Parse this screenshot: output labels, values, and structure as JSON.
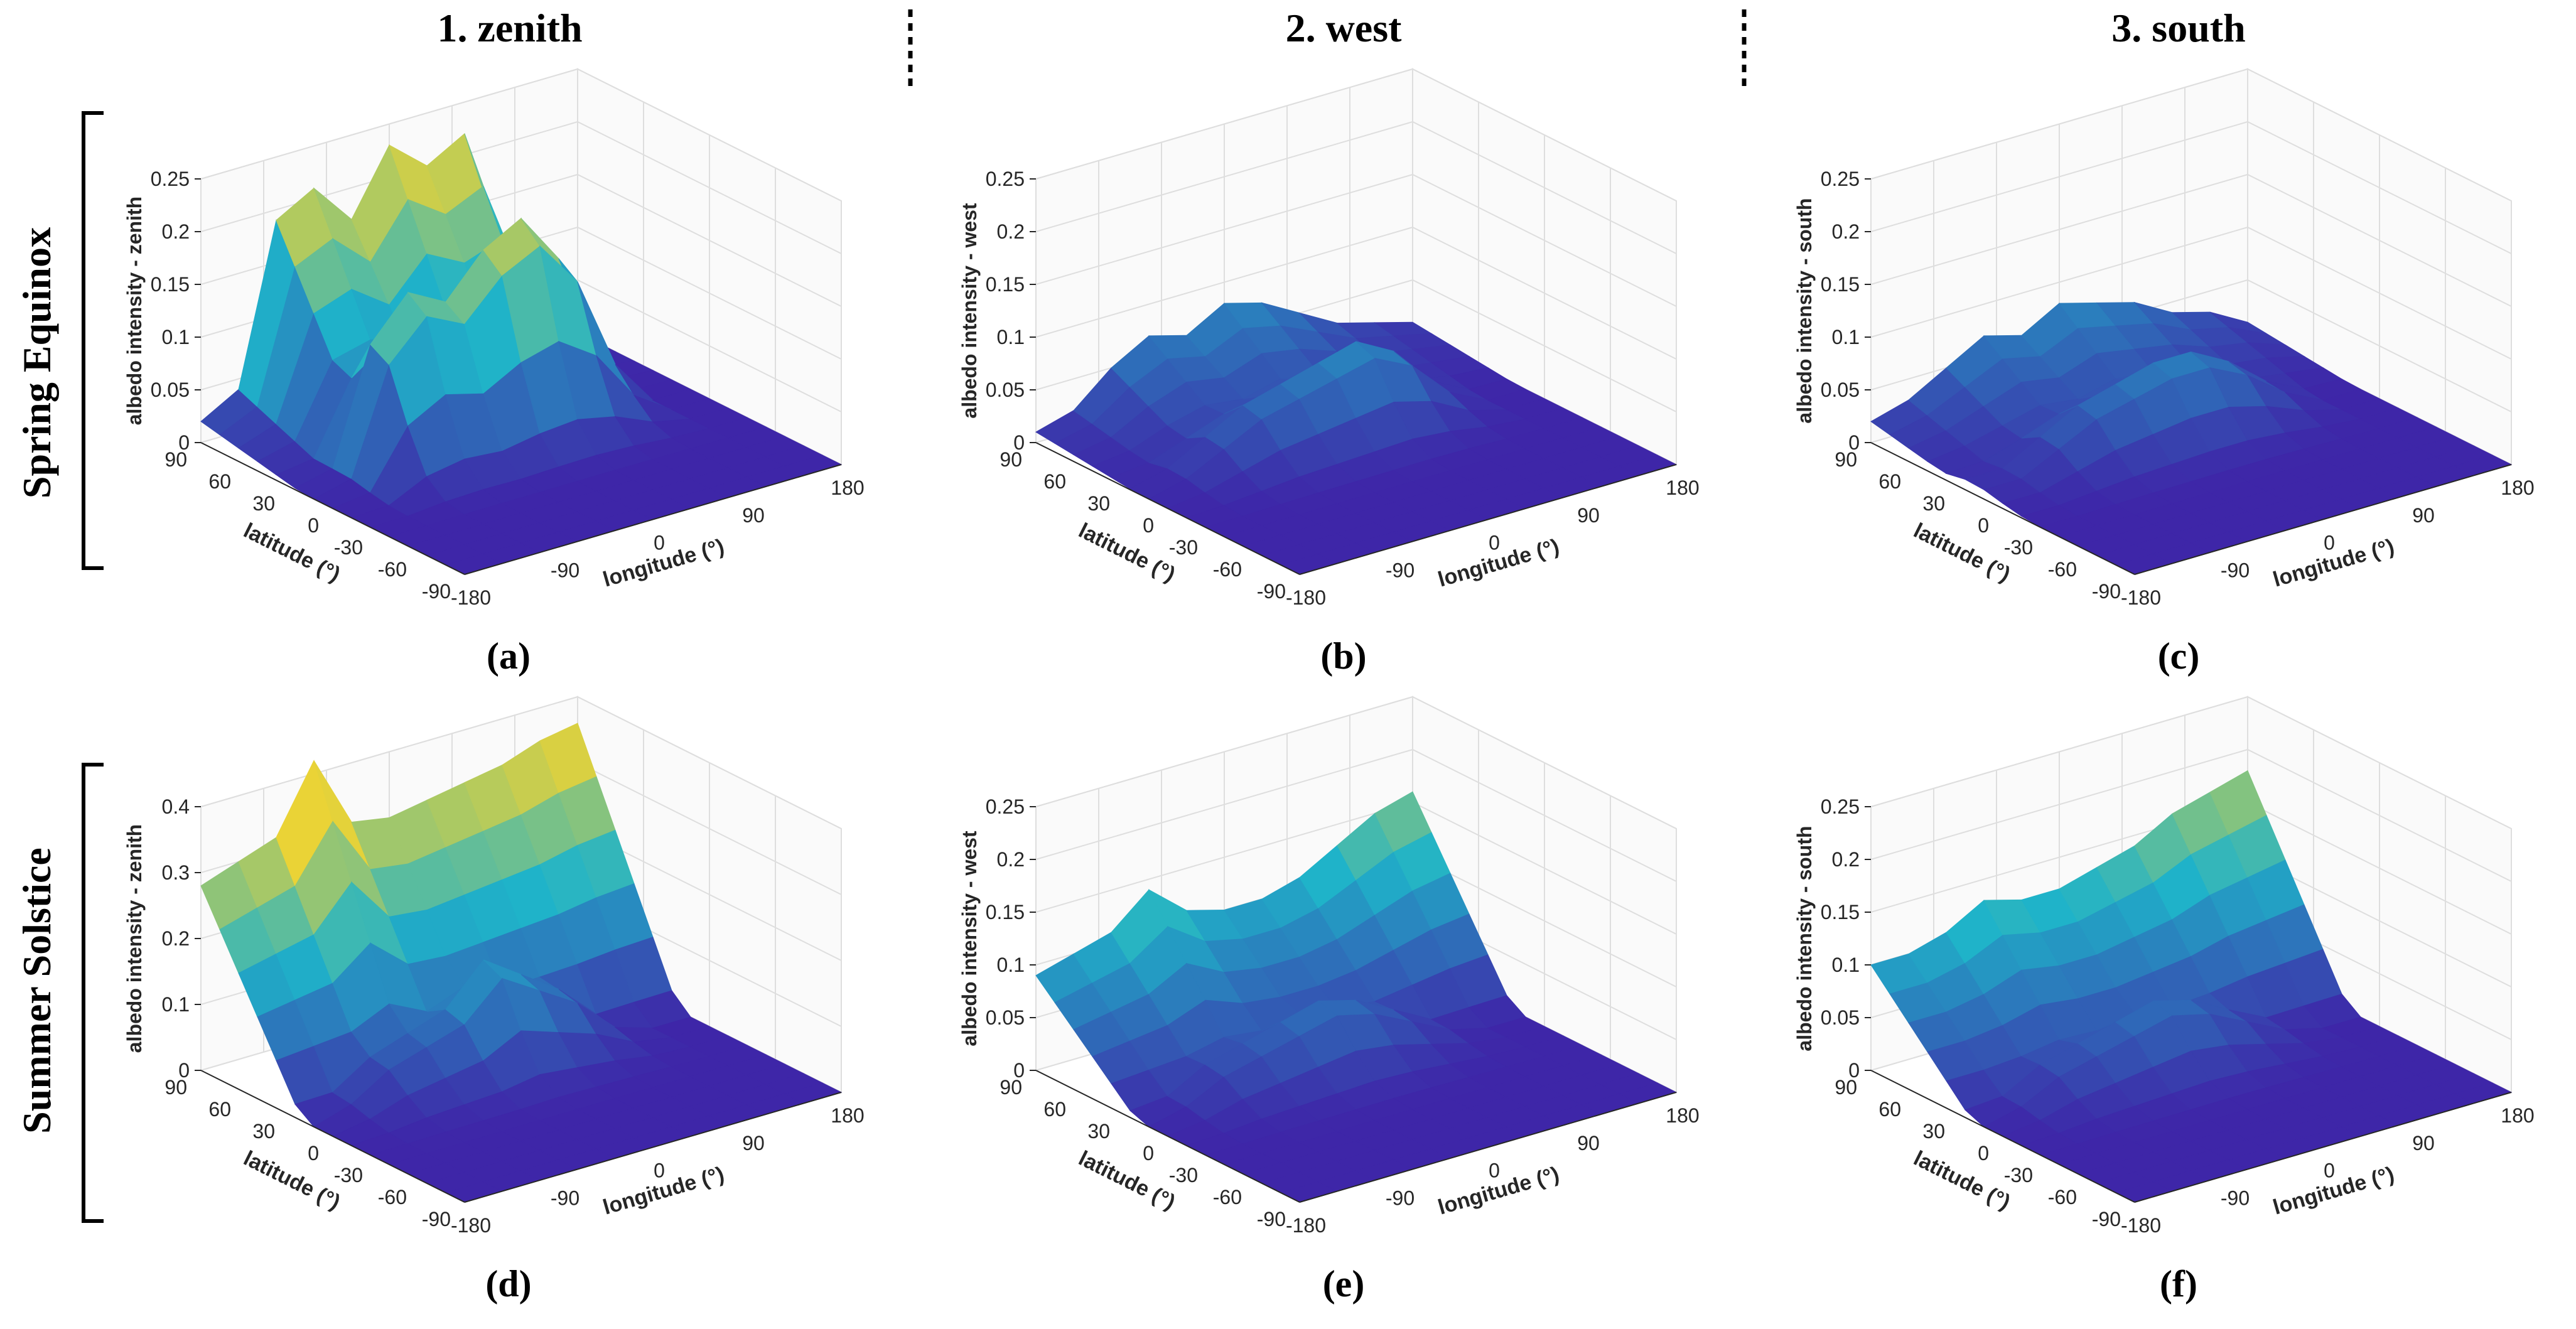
{
  "columns": [
    {
      "label": "1. zenith"
    },
    {
      "label": "2. west"
    },
    {
      "label": "3. south"
    }
  ],
  "rows": [
    {
      "label": "Spring Equinox"
    },
    {
      "label": "Summer Solstice"
    }
  ],
  "chart_data": [
    {
      "id": "a",
      "type": "surface",
      "panel_label": "(a)",
      "title": "",
      "ylabel": "latitude (°)",
      "xlabel": "longitude (°)",
      "zlabel": "albedo intensity - zenith",
      "x_ticks": [
        "-180",
        "-90",
        "0",
        "90",
        "180"
      ],
      "y_ticks": [
        "-90",
        "-60",
        "-30",
        "0",
        "30",
        "60",
        "90"
      ],
      "z_ticks": [
        "0",
        "0.05",
        "0.1",
        "0.15",
        "0.2",
        "0.25"
      ],
      "zlim": [
        0,
        0.25
      ],
      "back_ridge": [
        0.02,
        0.04,
        0.19,
        0.21,
        0.17,
        0.23,
        0.2,
        0.22,
        0.1,
        0.01,
        0.0
      ],
      "mid_ridge": [
        0.0,
        0.01,
        0.12,
        0.16,
        0.14,
        0.18,
        0.2,
        0.15,
        0.05,
        0.0,
        0.0
      ]
    },
    {
      "id": "b",
      "type": "surface",
      "panel_label": "(b)",
      "title": "",
      "ylabel": "latitude (°)",
      "xlabel": "longitude (°)",
      "zlabel": "albedo intensity - west",
      "x_ticks": [
        "-180",
        "-90",
        "0",
        "90",
        "180"
      ],
      "y_ticks": [
        "-90",
        "-60",
        "-30",
        "0",
        "30",
        "60",
        "90"
      ],
      "z_ticks": [
        "0",
        "0.05",
        "0.1",
        "0.15",
        "0.2",
        "0.25"
      ],
      "zlim": [
        0,
        0.25
      ],
      "back_ridge": [
        0.01,
        0.02,
        0.05,
        0.07,
        0.06,
        0.08,
        0.07,
        0.05,
        0.03,
        0.02,
        0.01
      ],
      "mid_ridge": [
        0.0,
        0.01,
        0.03,
        0.05,
        0.06,
        0.07,
        0.08,
        0.06,
        0.02,
        0.0,
        0.0
      ]
    },
    {
      "id": "c",
      "type": "surface",
      "panel_label": "(c)",
      "title": "",
      "ylabel": "latitude (°)",
      "xlabel": "longitude (°)",
      "zlabel": "albedo intensity - south",
      "x_ticks": [
        "-180",
        "-90",
        "0",
        "90",
        "180"
      ],
      "y_ticks": [
        "-90",
        "-60",
        "-30",
        "0",
        "30",
        "60",
        "90"
      ],
      "z_ticks": [
        "0",
        "0.05",
        "0.1",
        "0.15",
        "0.2",
        "0.25"
      ],
      "zlim": [
        0,
        0.25
      ],
      "back_ridge": [
        0.02,
        0.03,
        0.05,
        0.07,
        0.06,
        0.08,
        0.07,
        0.06,
        0.04,
        0.03,
        0.01
      ],
      "mid_ridge": [
        0.01,
        0.01,
        0.03,
        0.05,
        0.06,
        0.07,
        0.07,
        0.05,
        0.02,
        0.0,
        0.0
      ]
    },
    {
      "id": "d",
      "type": "surface",
      "panel_label": "(d)",
      "title": "",
      "ylabel": "latitude (°)",
      "xlabel": "longitude (°)",
      "zlabel": "albedo intensity - zenith",
      "x_ticks": [
        "-180",
        "-90",
        "0",
        "90",
        "180"
      ],
      "y_ticks": [
        "-90",
        "-60",
        "-30",
        "0",
        "30",
        "60",
        "90"
      ],
      "z_ticks": [
        "0",
        "0.1",
        "0.2",
        "0.3",
        "0.4"
      ],
      "zlim": [
        0,
        0.4
      ],
      "back_ridge": [
        0.28,
        0.3,
        0.32,
        0.42,
        0.31,
        0.3,
        0.31,
        0.32,
        0.33,
        0.35,
        0.36
      ],
      "mid_ridge": [
        0.0,
        0.02,
        0.06,
        0.08,
        0.1,
        0.16,
        0.12,
        0.08,
        0.02,
        0.0,
        0.0
      ]
    },
    {
      "id": "e",
      "type": "surface",
      "panel_label": "(e)",
      "title": "",
      "ylabel": "latitude (°)",
      "xlabel": "longitude (°)",
      "zlabel": "albedo intensity - west",
      "x_ticks": [
        "-180",
        "-90",
        "0",
        "90",
        "180"
      ],
      "y_ticks": [
        "-90",
        "-60",
        "-30",
        "0",
        "30",
        "60",
        "90"
      ],
      "z_ticks": [
        "0",
        "0.05",
        "0.1",
        "0.15",
        "0.2",
        "0.25"
      ],
      "zlim": [
        0,
        0.25
      ],
      "back_ridge": [
        0.09,
        0.1,
        0.11,
        0.14,
        0.11,
        0.1,
        0.1,
        0.11,
        0.13,
        0.15,
        0.16
      ],
      "mid_ridge": [
        0.0,
        0.01,
        0.03,
        0.04,
        0.05,
        0.06,
        0.05,
        0.03,
        0.01,
        0.0,
        0.0
      ]
    },
    {
      "id": "f",
      "type": "surface",
      "panel_label": "(f)",
      "title": "",
      "ylabel": "latitude (°)",
      "xlabel": "longitude (°)",
      "zlabel": "albedo intensity - south",
      "x_ticks": [
        "-180",
        "-90",
        "0",
        "90",
        "180"
      ],
      "y_ticks": [
        "-90",
        "-60",
        "-30",
        "0",
        "30",
        "60",
        "90"
      ],
      "z_ticks": [
        "0",
        "0.05",
        "0.1",
        "0.15",
        "0.2",
        "0.25"
      ],
      "zlim": [
        0,
        0.25
      ],
      "back_ridge": [
        0.1,
        0.1,
        0.11,
        0.13,
        0.12,
        0.12,
        0.13,
        0.14,
        0.16,
        0.17,
        0.18
      ],
      "mid_ridge": [
        0.0,
        0.01,
        0.03,
        0.04,
        0.05,
        0.06,
        0.05,
        0.03,
        0.01,
        0.0,
        0.0
      ]
    }
  ],
  "colors": {
    "low": "#3e26a8",
    "mid": "#1fb3c9",
    "high": "#f9d52b",
    "grid": "#dedede",
    "axis": "#262626"
  }
}
